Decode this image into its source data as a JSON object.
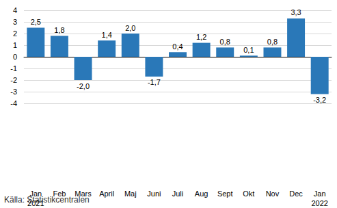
{
  "chart_data": {
    "type": "bar",
    "categories": [
      "Jan\n2021",
      "Feb",
      "Mars",
      "April",
      "Maj",
      "Juni",
      "Juli",
      "Aug",
      "Sept",
      "Okt",
      "Nov",
      "Dec",
      "Jan\n2022"
    ],
    "values": [
      2.5,
      1.8,
      -2.0,
      1.4,
      2.0,
      -1.7,
      0.4,
      1.2,
      0.8,
      0.1,
      0.8,
      3.3,
      -3.2
    ],
    "value_labels": [
      "2,5",
      "1,8",
      "-2,0",
      "1,4",
      "2,0",
      "-1,7",
      "0,4",
      "1,2",
      "0,8",
      "0,1",
      "0,8",
      "3,3",
      "-3,2"
    ],
    "color": "#2a78b8",
    "ylim": [
      -4,
      4
    ],
    "yticks": [
      -4,
      -3,
      -2,
      -1,
      0,
      1,
      2,
      3,
      4
    ],
    "grid": true,
    "data_labels": true,
    "annotations": [
      "Källa: Statistikcentralen"
    ]
  }
}
